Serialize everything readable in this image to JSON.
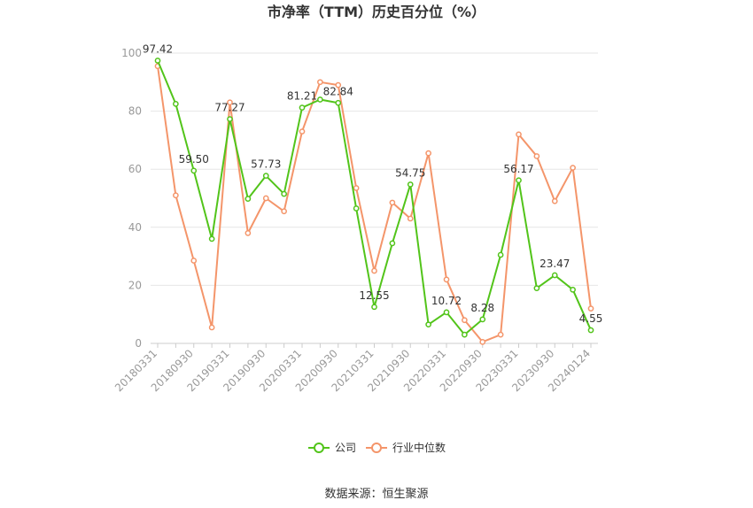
{
  "chart_data": {
    "type": "line",
    "title": "市净率（TTM）历史百分位（%）",
    "xlabel": "",
    "ylabel": "",
    "ylim": [
      0,
      100
    ],
    "yticks": [
      0,
      20,
      40,
      60,
      80,
      100
    ],
    "grid": true,
    "legend_position": "bottom-center",
    "x_tick_labels": [
      "20180331",
      "20180930",
      "20190331",
      "20190930",
      "20200331",
      "20200930",
      "20210331",
      "20210930",
      "20220331",
      "20220930",
      "20230331",
      "20230930",
      "20240124"
    ],
    "series": [
      {
        "name": "公司",
        "color": "#52c41a",
        "values": [
          97.42,
          82.5,
          59.5,
          36.0,
          77.27,
          49.8,
          57.73,
          51.5,
          81.21,
          84.0,
          82.84,
          46.5,
          12.55,
          34.5,
          54.75,
          6.5,
          10.72,
          3.0,
          8.28,
          30.5,
          56.17,
          19.0,
          23.47,
          18.5,
          4.55
        ],
        "labels": {
          "0": "97.42",
          "2": "59.50",
          "4": "77.27",
          "6": "57.73",
          "8": "81.21",
          "10": "82.84",
          "12": "12.55",
          "14": "54.75",
          "16": "10.72",
          "18": "8.28",
          "20": "56.17",
          "22": "23.47",
          "24": "4.55"
        }
      },
      {
        "name": "行业中位数",
        "color": "#f4956a",
        "values": [
          95.5,
          51.0,
          28.5,
          5.5,
          83.0,
          38.0,
          50.0,
          45.5,
          73.0,
          90.0,
          89.0,
          53.5,
          25.0,
          48.5,
          43.0,
          65.5,
          22.0,
          8.0,
          0.5,
          3.0,
          72.0,
          64.5,
          49.0,
          60.5,
          12.0
        ]
      }
    ]
  },
  "legend": {
    "company": "公司",
    "industry": "行业中位数"
  },
  "source": "数据来源：恒生聚源"
}
